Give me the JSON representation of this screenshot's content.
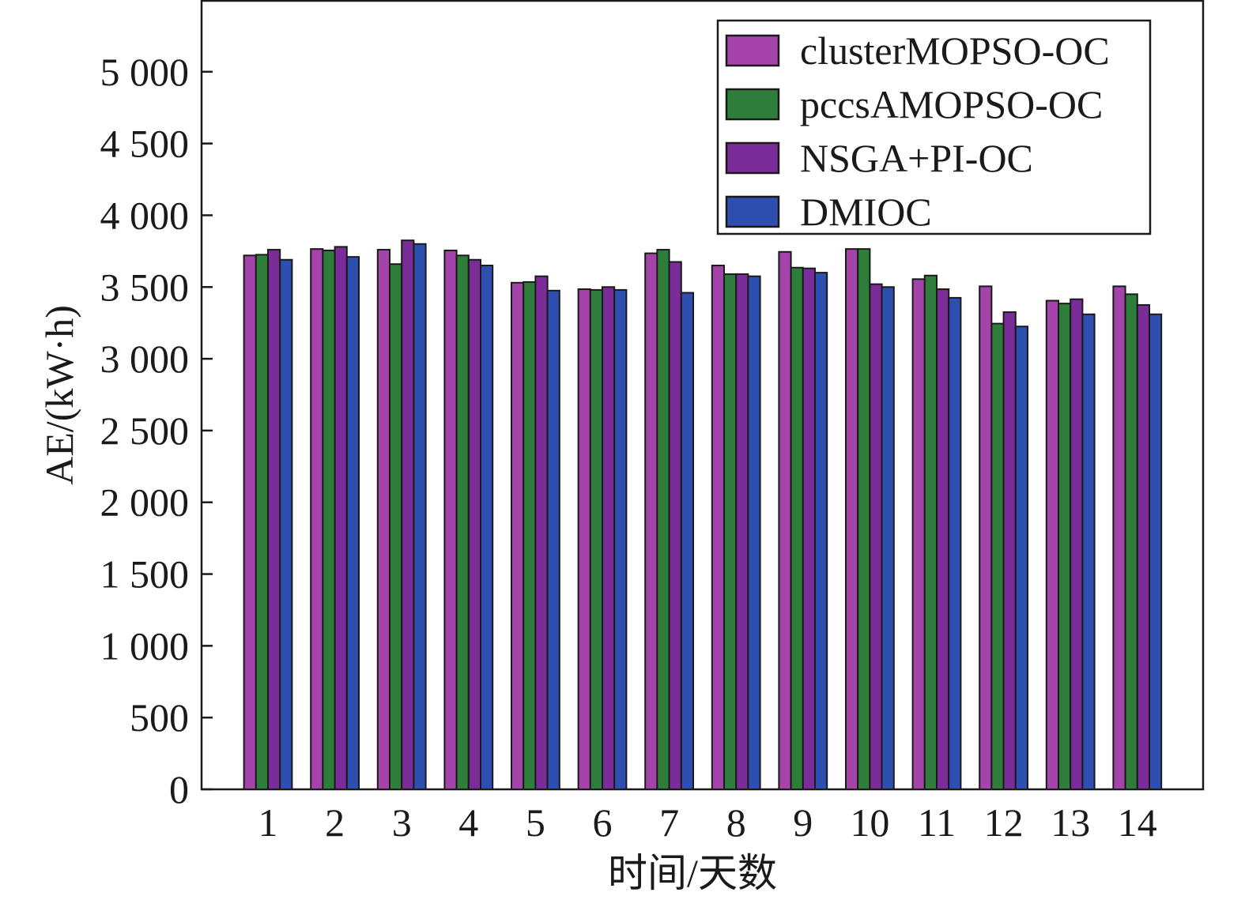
{
  "chart_data": {
    "type": "bar",
    "title": "",
    "xlabel": "时间/天数",
    "ylabel": "AE/(kW·h)",
    "categories": [
      "1",
      "2",
      "3",
      "4",
      "5",
      "6",
      "7",
      "8",
      "9",
      "10",
      "11",
      "12",
      "13",
      "14"
    ],
    "ylim": [
      0,
      5500
    ],
    "yticks": [
      0,
      500,
      1000,
      1500,
      2000,
      2500,
      3000,
      3500,
      4000,
      4500,
      5000
    ],
    "ytick_labels": [
      "0",
      "500",
      "1 000",
      "1 500",
      "2 000",
      "2 500",
      "3 000",
      "3 500",
      "4 000",
      "4 500",
      "5 000"
    ],
    "grid": false,
    "legend_position": "top-right",
    "series": [
      {
        "name": "clusterMOPSO-OC",
        "color": "#a443a9",
        "values": [
          3720,
          3765,
          3760,
          3755,
          3530,
          3485,
          3735,
          3650,
          3745,
          3765,
          3555,
          3505,
          3405,
          3505
        ]
      },
      {
        "name": "pccsAMOPSO-OC",
        "color": "#2e7d3a",
        "values": [
          3725,
          3755,
          3660,
          3720,
          3535,
          3480,
          3760,
          3590,
          3635,
          3765,
          3580,
          3245,
          3385,
          3450
        ]
      },
      {
        "name": "NSGA+PI-OC",
        "color": "#7a2d98",
        "values": [
          3760,
          3780,
          3825,
          3690,
          3575,
          3500,
          3675,
          3590,
          3630,
          3520,
          3485,
          3325,
          3415,
          3375
        ]
      },
      {
        "name": "DMIOC",
        "color": "#2f4fb0",
        "values": [
          3690,
          3710,
          3800,
          3650,
          3475,
          3480,
          3460,
          3575,
          3600,
          3500,
          3425,
          3225,
          3310,
          3310
        ]
      }
    ]
  }
}
